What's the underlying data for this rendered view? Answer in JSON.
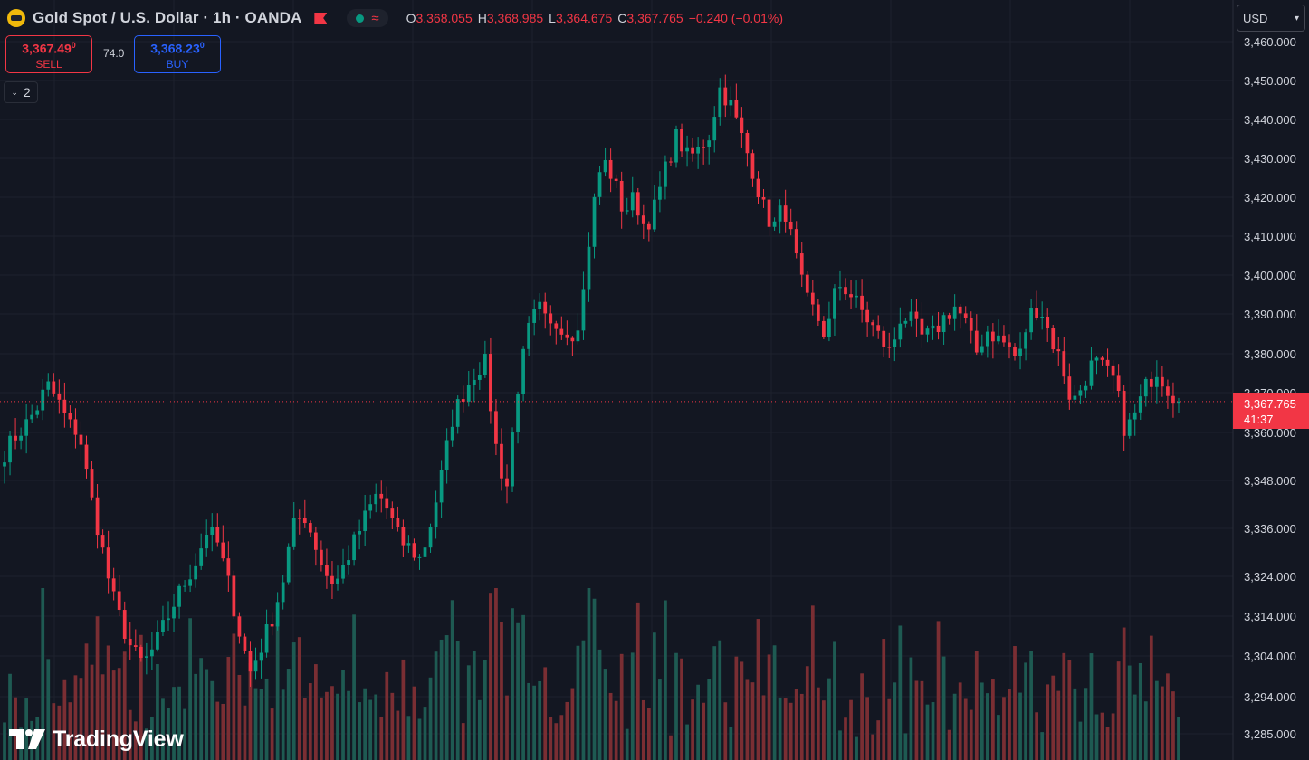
{
  "header": {
    "symbol": "Gold Spot / U.S. Dollar · 1h · OANDA",
    "ohlc": [
      {
        "k": "O",
        "v": "3,368.055"
      },
      {
        "k": "H",
        "v": "3,368.985"
      },
      {
        "k": "L",
        "v": "3,364.675"
      },
      {
        "k": "C",
        "v": "3,367.765"
      },
      {
        "k": "",
        "v": "−0.240 (−0.01%)"
      }
    ]
  },
  "trade": {
    "sell_price": "3,367.49",
    "sell_sup": "0",
    "sell_label": "SELL",
    "spread": "74.0",
    "buy_price": "3,368.23",
    "buy_sup": "0",
    "buy_label": "BUY"
  },
  "indicators_toggle": {
    "count": "2"
  },
  "currency": {
    "selected": "USD"
  },
  "watermark": {
    "text": "TradingView"
  },
  "colors": {
    "background": "#131722",
    "up": "#089981",
    "down": "#f23645",
    "up_volume": "#1e5a52",
    "down_volume": "#7a2e33",
    "grid": "#1e222d",
    "axis_text": "#d1d4dc"
  },
  "chart_data": {
    "type": "candlestick",
    "y_axis": {
      "side": "right",
      "scale": "nonlinear",
      "ticks": [
        3460,
        3450,
        3440,
        3430,
        3420,
        3410,
        3400,
        3390,
        3380,
        3370,
        3360,
        3348,
        3336,
        3324,
        3314,
        3304,
        3294,
        3285
      ],
      "tick_labels": [
        "3,460.000",
        "3,450.000",
        "3,440.000",
        "3,430.000",
        "3,420.000",
        "3,410.000",
        "3,400.000",
        "3,390.000",
        "3,380.000",
        "3,370.000",
        "3,360.000",
        "3,348.000",
        "3,336.000",
        "3,324.000",
        "3,314.000",
        "3,304.000",
        "3,294.000",
        "3,285.000"
      ]
    },
    "last_price": {
      "value": 3367.765,
      "label": "3,367.765",
      "countdown": "41:37"
    },
    "grid": true,
    "close_path": [
      3355,
      3359,
      3362,
      3366,
      3372,
      3368,
      3362,
      3360,
      3345,
      3333,
      3320,
      3312,
      3305,
      3302,
      3306,
      3312,
      3318,
      3323,
      3328,
      3336,
      3332,
      3322,
      3310,
      3300,
      3306,
      3313,
      3322,
      3336,
      3340,
      3333,
      3325,
      3322,
      3328,
      3334,
      3340,
      3345,
      3340,
      3333,
      3331,
      3328,
      3338,
      3350,
      3364,
      3370,
      3375,
      3378,
      3357,
      3345,
      3370,
      3385,
      3392,
      3386,
      3388,
      3384,
      3390,
      3415,
      3430,
      3425,
      3416,
      3420,
      3412,
      3418,
      3428,
      3436,
      3430,
      3432,
      3436,
      3448,
      3444,
      3436,
      3428,
      3418,
      3412,
      3418,
      3406,
      3394,
      3390,
      3384,
      3398,
      3396,
      3392,
      3388,
      3384,
      3380,
      3390,
      3388,
      3384,
      3385,
      3389,
      3392,
      3388,
      3380,
      3386,
      3384,
      3382,
      3378,
      3390,
      3392,
      3384,
      3378,
      3367,
      3372,
      3378,
      3376,
      3373,
      3360,
      3365,
      3372,
      3376,
      3371,
      3368
    ],
    "volume_scale": "relative, axis not labeled"
  }
}
